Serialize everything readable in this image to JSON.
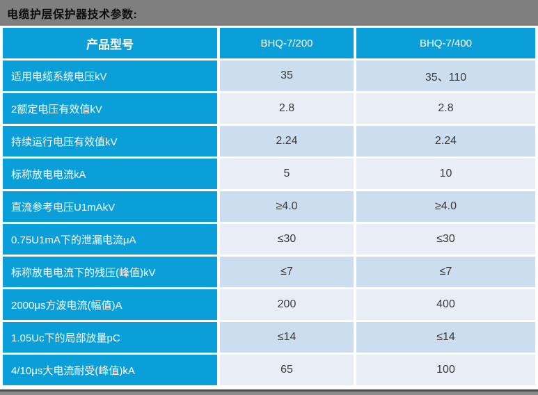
{
  "page": {
    "title": "电缆护层保护器技术参数:"
  },
  "table": {
    "header": [
      "产品型号",
      "BHQ-7/200",
      "BHQ-7/400"
    ],
    "rows": [
      {
        "label": "适用电缆系统电压kV",
        "values": [
          "35",
          "35、110"
        ]
      },
      {
        "label": "2额定电压有效值kV",
        "values": [
          "2.8",
          "2.8"
        ]
      },
      {
        "label": "持续运行电压有效值kV",
        "values": [
          "2.24",
          "2.24"
        ]
      },
      {
        "label": "标称放电电流kA",
        "values": [
          "5",
          "10"
        ]
      },
      {
        "label": "直流参考电压U1mAkV",
        "values": [
          "≥4.0",
          "≥4.0"
        ]
      },
      {
        "label": "0.75U1mA下的泄漏电流μA",
        "values": [
          "≤30",
          "≤30"
        ]
      },
      {
        "label": "标称放电电流下的残压(峰值)kV",
        "values": [
          "≤7",
          "≤7"
        ]
      },
      {
        "label": "2000μs方波电流(幅值)A",
        "values": [
          "200",
          "400"
        ]
      },
      {
        "label": "1.05Uc下的局部放量pC",
        "values": [
          "≤14",
          "≤14"
        ]
      },
      {
        "label": "4/10μs大电流耐受(峰值)kA",
        "values": [
          "65",
          "100"
        ]
      }
    ]
  },
  "colors": {
    "header_blue": "#0A9FD9",
    "row_odd_bg": "#CBDDEE",
    "row_even_bg": "#E9EEF6",
    "top_bar_gray": "#7F7F7F",
    "bottom_line_dark": "#4D4D4D",
    "value_text": "#3A3A3A"
  }
}
